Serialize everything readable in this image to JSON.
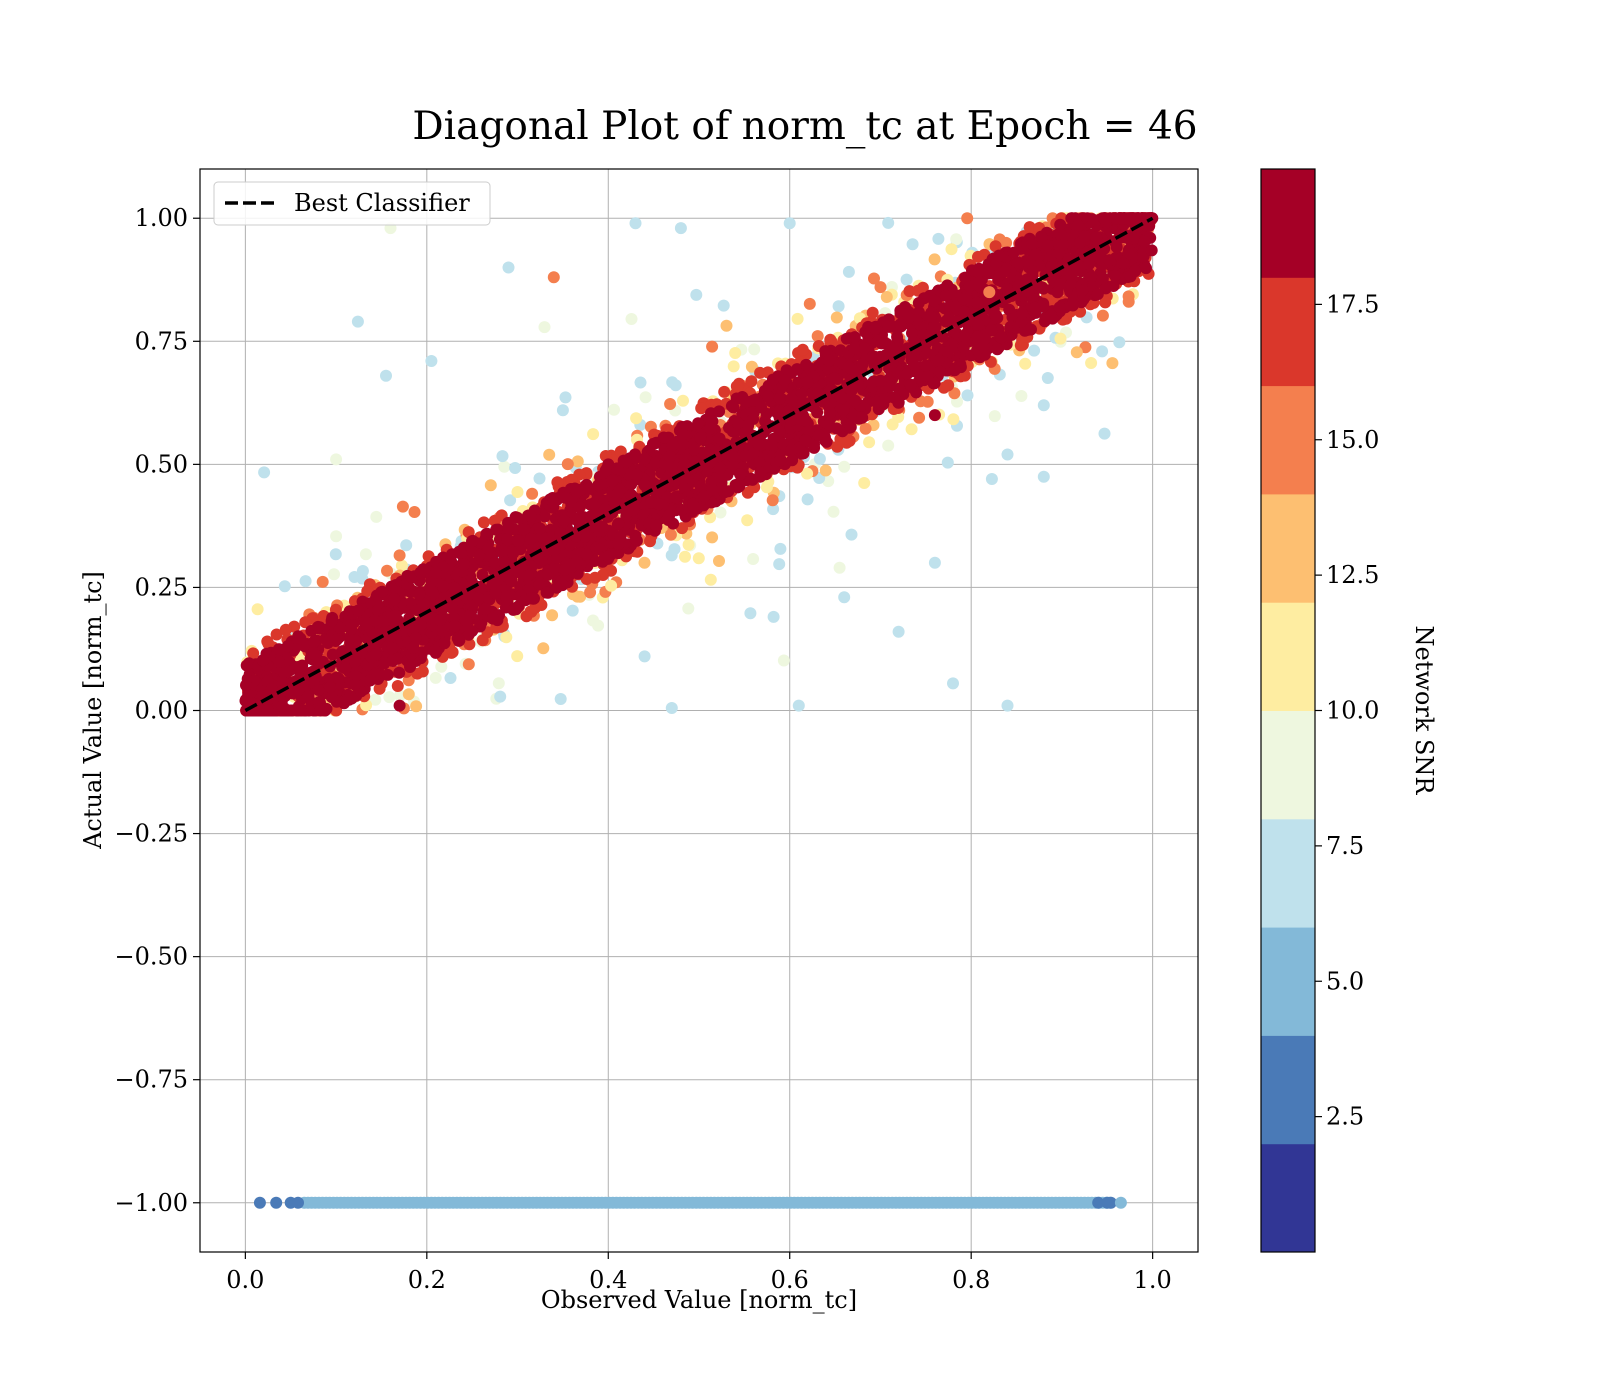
{
  "chart_data": {
    "type": "scatter",
    "title": "Diagonal Plot of norm_tc at Epoch = 46",
    "xlabel": "Observed Value [norm_tc]",
    "ylabel": "Actual Value [norm_tc]",
    "xlim": [
      -0.05,
      1.05
    ],
    "ylim": [
      -1.1,
      1.1
    ],
    "x_ticks": [
      "0.0",
      "0.2",
      "0.4",
      "0.6",
      "0.8",
      "1.0"
    ],
    "x_tick_values": [
      0.0,
      0.2,
      0.4,
      0.6,
      0.8,
      1.0
    ],
    "y_ticks": [
      "1.00",
      "0.75",
      "0.50",
      "0.25",
      "0.00",
      "−0.25",
      "−0.50",
      "−0.75",
      "−1.00"
    ],
    "y_tick_values": [
      1.0,
      0.75,
      0.5,
      0.25,
      0.0,
      -0.25,
      -0.5,
      -0.75,
      -1.0
    ],
    "grid": true,
    "legend": {
      "position": "top-left",
      "entries": [
        {
          "label": "Best Classifier",
          "style": "dashed",
          "color": "#000000"
        }
      ]
    },
    "reference_line": {
      "name": "Best Classifier",
      "x": [
        0.0,
        1.0
      ],
      "y": [
        0.0,
        1.0
      ]
    },
    "colorbar": {
      "label": "Network SNR",
      "range": [
        0,
        20
      ],
      "ticks": [
        "2.5",
        "5.0",
        "7.5",
        "10.0",
        "12.5",
        "15.0",
        "17.5"
      ],
      "tick_values": [
        2.5,
        5.0,
        7.5,
        10.0,
        12.5,
        15.0,
        17.5
      ],
      "bins": [
        {
          "from": 0.0,
          "to": 2.0,
          "color": "#313695"
        },
        {
          "from": 2.0,
          "to": 4.0,
          "color": "#4a7ab7"
        },
        {
          "from": 4.0,
          "to": 6.0,
          "color": "#83b9d8"
        },
        {
          "from": 6.0,
          "to": 8.0,
          "color": "#bfe1ec"
        },
        {
          "from": 8.0,
          "to": 10.0,
          "color": "#eef7df"
        },
        {
          "from": 10.0,
          "to": 12.0,
          "color": "#feeda1"
        },
        {
          "from": 12.0,
          "to": 14.0,
          "color": "#fdbf71"
        },
        {
          "from": 14.0,
          "to": 16.0,
          "color": "#f47f4e"
        },
        {
          "from": 16.0,
          "to": 18.0,
          "color": "#da372b"
        },
        {
          "from": 18.0,
          "to": 20.0,
          "color": "#a50026"
        }
      ]
    },
    "series": [
      {
        "snr_band": "18-20",
        "color": "#a50026",
        "distribution": "dense band along y = x, width about ±0.1, x 0.0–1.0"
      },
      {
        "snr_band": "14-18",
        "color": "#f47f4e",
        "distribution": "band along y = x, width about ±0.13"
      },
      {
        "snr_band": "10-14",
        "color": "#feeda1",
        "distribution": "sparse scatter around y = x"
      },
      {
        "snr_band": "6-10",
        "color": "#bfe1ec",
        "distribution": "widely scattered points, mostly above and below the diagonal"
      },
      {
        "snr_band": "4-6",
        "color": "#83b9d8",
        "distribution": "horizontal line of points at y = -1.00 for x 0.02–0.96"
      }
    ],
    "sample_outliers": [
      {
        "x": 0.16,
        "y": 0.98,
        "snr": 9
      },
      {
        "x": 0.124,
        "y": 0.79,
        "snr": 7
      },
      {
        "x": 0.155,
        "y": 0.68,
        "snr": 7
      },
      {
        "x": 0.205,
        "y": 0.71,
        "snr": 7
      },
      {
        "x": 0.35,
        "y": 0.61,
        "snr": 7
      },
      {
        "x": 0.43,
        "y": 0.99,
        "snr": 7
      },
      {
        "x": 0.48,
        "y": 0.98,
        "snr": 7
      },
      {
        "x": 0.6,
        "y": 0.99,
        "snr": 7
      },
      {
        "x": 0.84,
        "y": 0.01,
        "snr": 7
      },
      {
        "x": 0.44,
        "y": 0.11,
        "snr": 7
      },
      {
        "x": 0.47,
        "y": 0.005,
        "snr": 7
      },
      {
        "x": 0.61,
        "y": 0.01,
        "snr": 7
      },
      {
        "x": 0.66,
        "y": 0.23,
        "snr": 7
      },
      {
        "x": 0.72,
        "y": 0.16,
        "snr": 7
      },
      {
        "x": 0.78,
        "y": 0.055,
        "snr": 7
      },
      {
        "x": 0.88,
        "y": 0.475,
        "snr": 7
      },
      {
        "x": 0.88,
        "y": 0.62,
        "snr": 7
      },
      {
        "x": 0.84,
        "y": 0.52,
        "snr": 7
      },
      {
        "x": 0.76,
        "y": 0.3,
        "snr": 7
      },
      {
        "x": 0.29,
        "y": 0.9,
        "snr": 7
      },
      {
        "x": 0.1,
        "y": 0.51,
        "snr": 9
      },
      {
        "x": 0.34,
        "y": 0.88,
        "snr": 15
      },
      {
        "x": 0.82,
        "y": 0.85,
        "snr": 15
      },
      {
        "x": 0.7,
        "y": 0.86,
        "snr": 14
      },
      {
        "x": 0.38,
        "y": 0.24,
        "snr": 15
      },
      {
        "x": 0.4,
        "y": 0.5,
        "snr": 18
      },
      {
        "x": 0.7,
        "y": 0.67,
        "snr": 19
      },
      {
        "x": 0.76,
        "y": 0.6,
        "snr": 19
      },
      {
        "x": 0.17,
        "y": 0.01,
        "snr": 19
      },
      {
        "x": 0.85,
        "y": 0.85,
        "snr": 19
      }
    ]
  }
}
